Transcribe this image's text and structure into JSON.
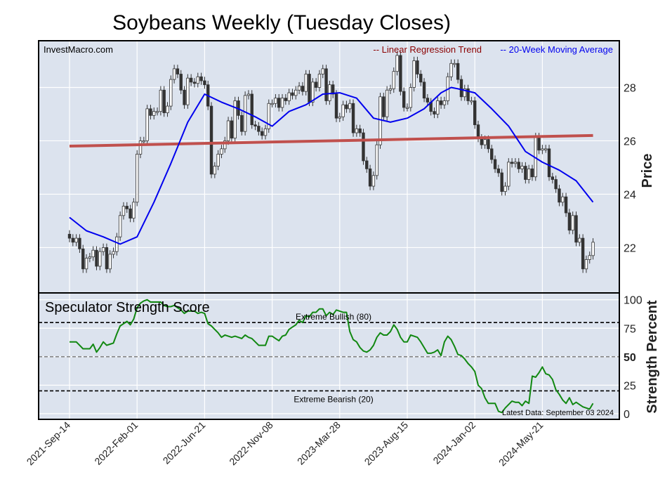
{
  "title": "Soybeans Weekly (Tuesday Closes)",
  "watermark": "InvestMacro.com",
  "colors": {
    "plot_bg": "#dce3ee",
    "grid": "#ffffff",
    "trend": "#c0504d",
    "ma": "#0000ee",
    "score": "#118811",
    "up_candle": "#ffffff",
    "down_candle": "#333333",
    "legend_trend": "#8b0000",
    "legend_ma": "#0000ee"
  },
  "chart_data": [
    {
      "type": "candlestick",
      "panel": "price",
      "ylabel": "Price",
      "ylim": [
        20.3,
        29.75
      ],
      "yticks": [
        22,
        24,
        26,
        28
      ],
      "grid": true,
      "legend_placement": "top-right",
      "legend": [
        {
          "label": "-- Linear Regression Trend",
          "color": "#8b0000"
        },
        {
          "label": "-- 20-Week Moving Average",
          "color": "#0000ee"
        }
      ],
      "dates": [
        "2021-09-14",
        "2021-09-21",
        "2021-09-28",
        "2021-10-05",
        "2021-10-12",
        "2021-10-19",
        "2021-10-26",
        "2021-11-02",
        "2021-11-09",
        "2021-11-16",
        "2021-11-23",
        "2021-11-30",
        "2021-12-07",
        "2021-12-14",
        "2021-12-21",
        "2021-12-28",
        "2022-01-04",
        "2022-01-11",
        "2022-01-18",
        "2022-01-25",
        "2022-02-01",
        "2022-02-08",
        "2022-02-15",
        "2022-02-22",
        "2022-03-01",
        "2022-03-08",
        "2022-03-15",
        "2022-03-22",
        "2022-03-29",
        "2022-04-05",
        "2022-04-12",
        "2022-04-19",
        "2022-04-26",
        "2022-05-03",
        "2022-05-10",
        "2022-05-17",
        "2022-05-24",
        "2022-05-31",
        "2022-06-07",
        "2022-06-14",
        "2022-06-21",
        "2022-06-28",
        "2022-07-05",
        "2022-07-12",
        "2022-07-19",
        "2022-07-26",
        "2022-08-02",
        "2022-08-09",
        "2022-08-16",
        "2022-08-23",
        "2022-08-30",
        "2022-09-06",
        "2022-09-13",
        "2022-09-20",
        "2022-09-27",
        "2022-10-04",
        "2022-10-11",
        "2022-10-18",
        "2022-10-25",
        "2022-11-01",
        "2022-11-08",
        "2022-11-15",
        "2022-11-22",
        "2022-11-29",
        "2022-12-06",
        "2022-12-13",
        "2022-12-20",
        "2022-12-27",
        "2023-01-03",
        "2023-01-10",
        "2023-01-17",
        "2023-01-24",
        "2023-01-31",
        "2023-02-07",
        "2023-02-14",
        "2023-02-21",
        "2023-02-28",
        "2023-03-07",
        "2023-03-14",
        "2023-03-21",
        "2023-03-28",
        "2023-04-04",
        "2023-04-11",
        "2023-04-18",
        "2023-04-25",
        "2023-05-02",
        "2023-05-09",
        "2023-05-16",
        "2023-05-23",
        "2023-05-30",
        "2023-06-06",
        "2023-06-13",
        "2023-06-20",
        "2023-06-27",
        "2023-07-04",
        "2023-07-11",
        "2023-07-18",
        "2023-07-25",
        "2023-08-01",
        "2023-08-08",
        "2023-08-15",
        "2023-08-22",
        "2023-08-29",
        "2023-09-05",
        "2023-09-12",
        "2023-09-19",
        "2023-09-26",
        "2023-10-03",
        "2023-10-10",
        "2023-10-17",
        "2023-10-24",
        "2023-10-31",
        "2023-11-07",
        "2023-11-14",
        "2023-11-21",
        "2023-11-28",
        "2023-12-05",
        "2023-12-12",
        "2023-12-19",
        "2023-12-26",
        "2024-01-02",
        "2024-01-09",
        "2024-01-16",
        "2024-01-23",
        "2024-01-30",
        "2024-02-06",
        "2024-02-13",
        "2024-02-20",
        "2024-02-27",
        "2024-03-05",
        "2024-03-12",
        "2024-03-19",
        "2024-03-26",
        "2024-04-02",
        "2024-04-09",
        "2024-04-16",
        "2024-04-23",
        "2024-04-30",
        "2024-05-07",
        "2024-05-14",
        "2024-05-21",
        "2024-05-28",
        "2024-06-04",
        "2024-06-11",
        "2024-06-18",
        "2024-06-25",
        "2024-07-02",
        "2024-07-09",
        "2024-07-16",
        "2024-07-23",
        "2024-07-30",
        "2024-08-06",
        "2024-08-13",
        "2024-08-20",
        "2024-08-27",
        "2024-09-03"
      ],
      "first_open": 22.5,
      "close": [
        22.35,
        22.2,
        22.35,
        21.95,
        21.2,
        21.6,
        21.65,
        21.9,
        21.3,
        21.85,
        22.0,
        21.2,
        21.75,
        21.85,
        22.4,
        23.2,
        23.55,
        23.45,
        23.1,
        23.7,
        25.5,
        26.0,
        26.0,
        27.2,
        26.95,
        27.1,
        27.1,
        27.9,
        27.05,
        27.3,
        28.3,
        28.7,
        28.5,
        27.9,
        27.35,
        28.35,
        28.2,
        28.15,
        28.4,
        28.25,
        28.1,
        27.3,
        24.75,
        25.05,
        25.5,
        25.7,
        26.0,
        26.75,
        26.1,
        27.5,
        26.95,
        26.35,
        27.7,
        27.75,
        26.6,
        26.55,
        26.35,
        26.2,
        26.45,
        27.4,
        27.4,
        27.6,
        27.25,
        27.6,
        27.5,
        27.8,
        27.7,
        27.9,
        28.05,
        27.85,
        28.5,
        27.45,
        28.2,
        28.0,
        28.5,
        28.7,
        27.5,
        28.1,
        27.75,
        26.85,
        26.9,
        27.35,
        27.2,
        27.4,
        26.3,
        26.45,
        26.3,
        25.25,
        24.95,
        24.3,
        24.7,
        25.85,
        27.65,
        26.9,
        27.9,
        27.95,
        28.6,
        29.2,
        27.85,
        27.25,
        27.25,
        28.0,
        29.0,
        28.5,
        28.2,
        27.6,
        27.45,
        27.1,
        27.0,
        27.5,
        27.35,
        27.5,
        28.4,
        28.9,
        28.9,
        28.3,
        27.65,
        27.95,
        27.5,
        27.5,
        26.6,
        26.1,
        25.85,
        26.05,
        25.7,
        25.3,
        24.95,
        24.8,
        24.1,
        24.3,
        25.2,
        25.15,
        25.2,
        24.95,
        25.05,
        24.55,
        24.95,
        24.65,
        26.15,
        25.65,
        25.7,
        25.7,
        24.65,
        24.55,
        24.2,
        23.7,
        23.9,
        23.3,
        22.65,
        23.2,
        22.2,
        22.35,
        21.2,
        21.55,
        21.7,
        22.2
      ],
      "moving_average_20w": [
        {
          "date": "2021-09-14",
          "value": 23.13
        },
        {
          "date": "2021-10-19",
          "value": 22.63
        },
        {
          "date": "2021-11-23",
          "value": 22.4
        },
        {
          "date": "2021-12-28",
          "value": 22.13
        },
        {
          "date": "2022-02-01",
          "value": 22.4
        },
        {
          "date": "2022-03-08",
          "value": 23.7
        },
        {
          "date": "2022-04-12",
          "value": 25.15
        },
        {
          "date": "2022-05-17",
          "value": 26.7
        },
        {
          "date": "2022-06-21",
          "value": 27.75
        },
        {
          "date": "2022-07-26",
          "value": 27.45
        },
        {
          "date": "2022-08-30",
          "value": 27.2
        },
        {
          "date": "2022-10-04",
          "value": 26.9
        },
        {
          "date": "2022-11-08",
          "value": 26.55
        },
        {
          "date": "2022-12-13",
          "value": 27.1
        },
        {
          "date": "2023-01-17",
          "value": 27.35
        },
        {
          "date": "2023-02-21",
          "value": 27.75
        },
        {
          "date": "2023-03-28",
          "value": 27.8
        },
        {
          "date": "2023-05-02",
          "value": 27.6
        },
        {
          "date": "2023-06-06",
          "value": 26.85
        },
        {
          "date": "2023-07-11",
          "value": 26.7
        },
        {
          "date": "2023-08-15",
          "value": 26.85
        },
        {
          "date": "2023-09-19",
          "value": 27.2
        },
        {
          "date": "2023-10-24",
          "value": 27.8
        },
        {
          "date": "2023-11-14",
          "value": 28.0
        },
        {
          "date": "2023-11-28",
          "value": 27.95
        },
        {
          "date": "2024-01-02",
          "value": 27.8
        },
        {
          "date": "2024-02-06",
          "value": 27.2
        },
        {
          "date": "2024-03-12",
          "value": 26.55
        },
        {
          "date": "2024-04-16",
          "value": 25.6
        },
        {
          "date": "2024-05-21",
          "value": 25.2
        },
        {
          "date": "2024-06-25",
          "value": 24.9
        },
        {
          "date": "2024-07-30",
          "value": 24.5
        },
        {
          "date": "2024-09-03",
          "value": 23.7
        }
      ],
      "regression_trend": [
        {
          "date": "2021-09-14",
          "value": 25.8
        },
        {
          "date": "2024-09-03",
          "value": 26.2
        }
      ],
      "xtick_labels": [
        {
          "date": "2021-09-14",
          "label": "2021-Sep-14"
        },
        {
          "date": "2022-02-01",
          "label": "2022-Feb-01"
        },
        {
          "date": "2022-06-21",
          "label": "2022-Jun-21"
        },
        {
          "date": "2022-11-08",
          "label": "2022-Nov-08"
        },
        {
          "date": "2023-03-28",
          "label": "2023-Mar-28"
        },
        {
          "date": "2023-08-15",
          "label": "2023-Aug-15"
        },
        {
          "date": "2024-01-02",
          "label": "2024-Jan-02"
        },
        {
          "date": "2024-05-21",
          "label": "2024-May-21"
        }
      ]
    },
    {
      "type": "line",
      "panel": "strength",
      "title": "Speculator Strength Score",
      "ylabel": "Strength Percent",
      "ylim": [
        -5,
        106
      ],
      "yticks": [
        0,
        25,
        50,
        75,
        100
      ],
      "grid": true,
      "reference_lines": [
        {
          "value": 80,
          "label": "Extreme Bullish (80)",
          "style": "dashed",
          "color": "#000000"
        },
        {
          "value": 50,
          "label": "",
          "style": "dashed",
          "color": "#888888"
        },
        {
          "value": 20,
          "label": "Extreme Bearish (20)",
          "style": "dashed",
          "color": "#000000"
        }
      ],
      "annotation": "Latest Data: September 03 2024",
      "values": [
        63,
        63,
        63,
        60,
        57,
        57,
        57,
        61,
        54,
        58,
        63,
        60,
        61,
        62,
        70,
        77,
        79,
        81,
        78,
        83,
        93,
        97,
        99,
        100,
        98,
        98,
        98,
        98,
        95,
        94,
        94,
        95,
        93,
        91,
        88,
        90,
        90,
        90,
        88,
        89,
        88,
        79,
        77,
        74,
        71,
        67,
        69,
        68,
        67,
        68,
        67,
        66,
        69,
        67,
        66,
        63,
        60,
        60,
        60,
        68,
        68,
        66,
        64,
        68,
        69,
        74,
        76,
        78,
        82,
        80,
        86,
        85,
        89,
        89,
        92,
        92,
        86,
        89,
        87,
        91,
        90,
        89,
        89,
        72,
        65,
        63,
        58,
        55,
        54,
        56,
        60,
        67,
        71,
        69,
        69,
        72,
        78,
        74,
        67,
        63,
        63,
        69,
        68,
        67,
        63,
        58,
        53,
        53,
        54,
        56,
        51,
        63,
        68,
        65,
        59,
        52,
        51,
        48,
        44,
        41,
        37,
        25,
        22,
        14,
        9,
        9,
        9,
        2,
        1,
        5,
        8,
        11,
        10,
        10,
        7,
        11,
        9,
        33,
        32,
        36,
        41,
        35,
        34,
        30,
        21,
        17,
        12,
        9,
        14,
        8,
        10,
        8,
        6,
        5,
        4,
        9
      ]
    }
  ]
}
